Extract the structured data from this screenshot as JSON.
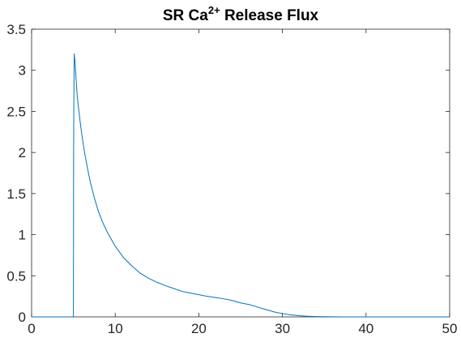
{
  "chart_data": {
    "type": "line",
    "title": {
      "prefix": "SR Ca",
      "superscript": "2+",
      "suffix": " Release Flux"
    },
    "xlabel": "",
    "ylabel": "",
    "xlim": [
      0,
      50
    ],
    "ylim": [
      0,
      3.5
    ],
    "xticks": [
      0,
      10,
      20,
      30,
      40,
      50
    ],
    "yticks": [
      0,
      0.5,
      1,
      1.5,
      2,
      2.5,
      3,
      3.5
    ],
    "xtick_labels": [
      "0",
      "10",
      "20",
      "30",
      "40",
      "50"
    ],
    "ytick_labels": [
      "0",
      "0.5",
      "1",
      "1.5",
      "2",
      "2.5",
      "3",
      "3.5"
    ],
    "grid": false,
    "box": true,
    "series_color": "#0072BD",
    "axis_color": "#262626",
    "series": [
      {
        "x": [
          0,
          5.0,
          5.02,
          5.05,
          5.1,
          5.2,
          5.3,
          5.45,
          5.5,
          5.6,
          5.8,
          6.0,
          6.3,
          6.7,
          7.0,
          7.5,
          8.0,
          8.5,
          9.0,
          10.0,
          11.0,
          12.0,
          13.0,
          14.0,
          15.0,
          16.0,
          17.0,
          18.0,
          19.0,
          20.0,
          21.0,
          22.0,
          23.0,
          24.0,
          25.0,
          26.0,
          27.0,
          28.0,
          29.0,
          30.0,
          31.0,
          32.0,
          33.0,
          34.0,
          35.0,
          36.0,
          37.0,
          38.0,
          40.0,
          45.0,
          50.0
        ],
        "y": [
          0,
          0,
          1.75,
          2.6,
          3.2,
          3.1,
          2.92,
          2.7,
          2.65,
          2.55,
          2.38,
          2.22,
          2.02,
          1.8,
          1.65,
          1.45,
          1.28,
          1.15,
          1.04,
          0.86,
          0.72,
          0.62,
          0.53,
          0.47,
          0.42,
          0.38,
          0.345,
          0.31,
          0.29,
          0.27,
          0.25,
          0.235,
          0.22,
          0.2,
          0.17,
          0.15,
          0.12,
          0.09,
          0.06,
          0.04,
          0.025,
          0.015,
          0.008,
          0.004,
          0.002,
          0.001,
          0.0005,
          0,
          0,
          0,
          0
        ]
      }
    ]
  }
}
